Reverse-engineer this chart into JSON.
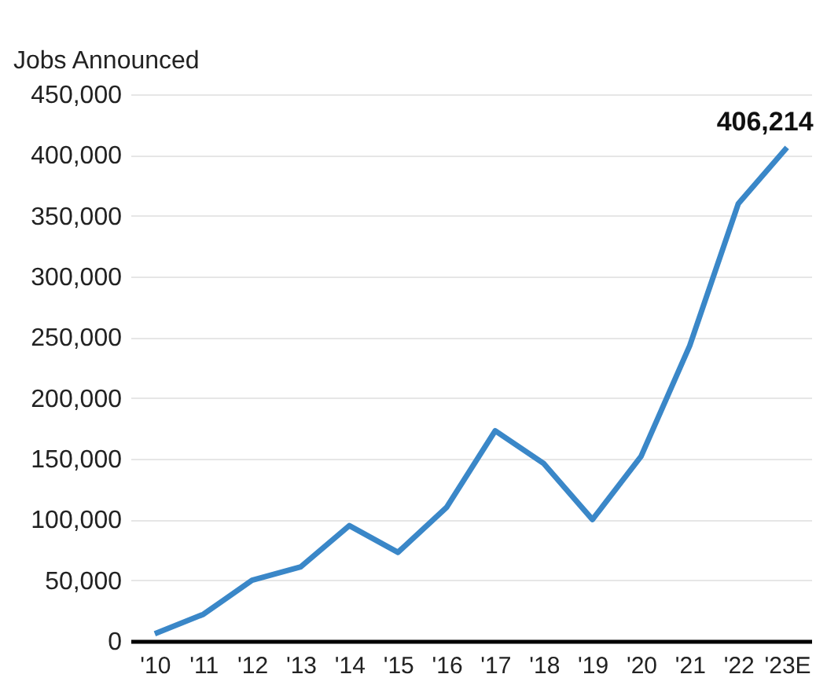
{
  "chart_data": {
    "type": "line",
    "ylabel": "Jobs Announced",
    "categories": [
      "'10",
      "'11",
      "'12",
      "'13",
      "'14",
      "'15",
      "'16",
      "'17",
      "'18",
      "'19",
      "'20",
      "'21",
      "'22",
      "'23E"
    ],
    "series": [
      {
        "color": "#3a87c8",
        "values": [
          6000,
          22000,
          50000,
          61000,
          95000,
          73000,
          110000,
          173000,
          146000,
          100000,
          152000,
          243000,
          360000,
          406214
        ],
        "value_labels": [
          null,
          null,
          null,
          null,
          null,
          null,
          null,
          null,
          null,
          null,
          null,
          null,
          null,
          "406,214"
        ]
      }
    ],
    "ylim": [
      0,
      450000
    ],
    "yticks": [
      0,
      {
        "value": 50000,
        "label": "50,000"
      },
      {
        "value": 100000,
        "label": "100,000"
      },
      {
        "value": 150000,
        "label": "150,000"
      },
      {
        "value": 200000,
        "label": "200,000"
      },
      {
        "value": 250000,
        "label": "250,000"
      },
      {
        "value": 300000,
        "label": "300,000"
      },
      {
        "value": 350000,
        "label": "350,000"
      },
      {
        "value": 400000,
        "label": "400,000"
      },
      {
        "value": 450000,
        "label": "450,000"
      }
    ],
    "grid": "y",
    "marker": "none",
    "line_style": "solid"
  }
}
